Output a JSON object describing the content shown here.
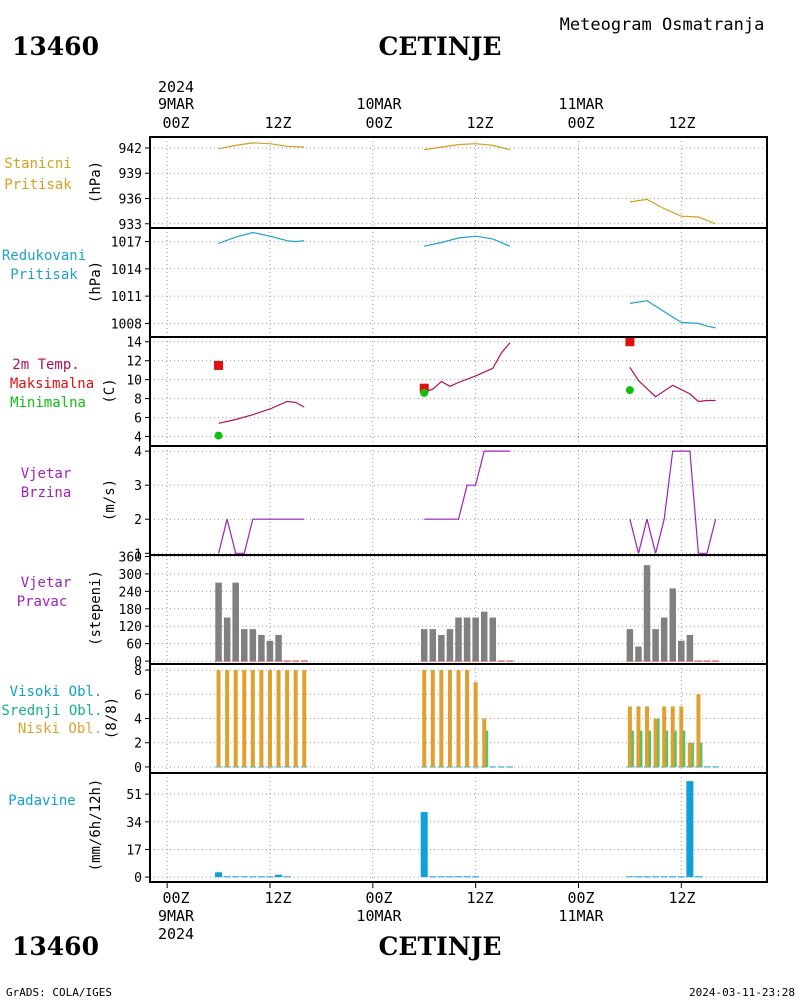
{
  "header": {
    "station_id": "13460",
    "station_name": "CETINJE",
    "product": "Meteogram Osmatranja"
  },
  "footer": {
    "credit": "GrADS: COLA/IGES",
    "timestamp": "2024-03-11-23:28"
  },
  "time_axis": {
    "year": "2024",
    "major_labels": [
      {
        "hour": "00Z",
        "date": "9MAR",
        "year": "2024"
      },
      {
        "hour": "00Z",
        "date": "10MAR"
      },
      {
        "hour": "00Z",
        "date": "11MAR"
      }
    ],
    "minor_label": "12Z",
    "x_hours_range": [
      -2,
      70
    ]
  },
  "colors": {
    "pressure_station": "#d4a020",
    "pressure_reduced": "#1ea0d0",
    "temp_line": "#b0105a",
    "temp_max": "#e01010",
    "temp_min": "#10c010",
    "wind": "#a020c0",
    "wind_dir_bar": "#808080",
    "cloud_high": "#10a0c0",
    "cloud_mid": "#10b090",
    "cloud_low": "#e0a030",
    "cloud_low_line": "#60c060",
    "precip": "#10a0d8"
  },
  "chart_data": [
    {
      "type": "line",
      "panel": "station_pressure",
      "labels": [
        "Stanicni",
        "Pritisak"
      ],
      "ylabel": "(hPa)",
      "ylim": [
        932.5,
        943.3
      ],
      "yticks": [
        933,
        936,
        939,
        942
      ],
      "series": [
        {
          "x": [
            6,
            8,
            10,
            12,
            14,
            16
          ],
          "y": [
            941.9,
            942.3,
            942.6,
            942.5,
            942.2,
            942.1
          ]
        },
        {
          "x": [
            30,
            32,
            34,
            36,
            38,
            40
          ],
          "y": [
            941.8,
            942.1,
            942.4,
            942.5,
            942.3,
            941.8
          ]
        },
        {
          "x": [
            54,
            56,
            58,
            60,
            62,
            64
          ],
          "y": [
            935.6,
            935.9,
            934.8,
            933.9,
            933.8,
            933.0
          ]
        }
      ]
    },
    {
      "type": "line",
      "panel": "reduced_pressure",
      "labels": [
        "Redukovani",
        "Pritisak"
      ],
      "ylabel": "(hPa)",
      "ylim": [
        1006.5,
        1018.5
      ],
      "yticks": [
        1008,
        1011,
        1014,
        1017
      ],
      "series": [
        {
          "x": [
            6,
            8,
            10,
            12,
            14,
            15,
            16
          ],
          "y": [
            1016.8,
            1017.5,
            1018.0,
            1017.6,
            1017.1,
            1017.0,
            1017.1
          ]
        },
        {
          "x": [
            30,
            32,
            34,
            36,
            38,
            40
          ],
          "y": [
            1016.5,
            1016.9,
            1017.4,
            1017.6,
            1017.3,
            1016.5
          ]
        },
        {
          "x": [
            54,
            56,
            58,
            60,
            62,
            63,
            64
          ],
          "y": [
            1010.2,
            1010.5,
            1009.3,
            1008.1,
            1008.0,
            1007.7,
            1007.5
          ]
        }
      ]
    },
    {
      "type": "line",
      "panel": "temperature",
      "labels": [
        "2m Temp.",
        "Maksimalna",
        "Minimalna"
      ],
      "ylabel": "(C)",
      "ylim": [
        3,
        14.5
      ],
      "yticks": [
        4,
        6,
        8,
        10,
        12,
        14
      ],
      "series": [
        {
          "x": [
            6,
            8,
            10,
            12,
            14,
            15,
            16
          ],
          "y": [
            5.4,
            5.8,
            6.3,
            6.9,
            7.7,
            7.6,
            7.1
          ]
        },
        {
          "x": [
            30,
            31,
            32,
            33,
            34,
            36,
            38,
            39,
            40
          ],
          "y": [
            8.7,
            9.0,
            9.8,
            9.3,
            9.7,
            10.4,
            11.2,
            12.8,
            13.9
          ]
        },
        {
          "x": [
            54,
            55,
            57,
            59,
            61,
            62,
            63,
            64
          ],
          "y": [
            11.3,
            9.9,
            8.2,
            9.4,
            8.5,
            7.7,
            7.8,
            7.8
          ]
        }
      ],
      "maxima": {
        "x": [
          6,
          30,
          54
        ],
        "y": [
          11.5,
          9.1,
          14.0
        ]
      },
      "minima": {
        "x": [
          6,
          30,
          54
        ],
        "y": [
          4.1,
          8.6,
          8.9
        ]
      }
    },
    {
      "type": "line",
      "panel": "wind_speed",
      "labels": [
        "Vjetar",
        "Brzina"
      ],
      "ylabel": "(m/s)",
      "ylim": [
        0.95,
        4.15
      ],
      "yticks": [
        1,
        2,
        3,
        4
      ],
      "series": [
        {
          "x": [
            6,
            7,
            8,
            9,
            10,
            11,
            12,
            13,
            14,
            15,
            16
          ],
          "y": [
            1,
            2,
            1,
            1,
            2,
            2,
            2,
            2,
            2,
            2,
            2
          ]
        },
        {
          "x": [
            30,
            31,
            32,
            33,
            34,
            35,
            36,
            37,
            38,
            39,
            40
          ],
          "y": [
            2,
            2,
            2,
            2,
            2,
            3,
            3,
            4,
            4,
            4,
            4
          ]
        },
        {
          "x": [
            54,
            55,
            56,
            57,
            58,
            59,
            60,
            61,
            62,
            63,
            64
          ],
          "y": [
            2,
            1,
            2,
            1,
            2,
            4,
            4,
            4,
            1,
            1,
            2
          ]
        }
      ]
    },
    {
      "type": "bar",
      "panel": "wind_direction",
      "labels": [
        "Vjetar",
        "Pravac"
      ],
      "ylabel": "(stepeni)",
      "ylim": [
        -10,
        365
      ],
      "yticks": [
        0,
        60,
        120,
        180,
        240,
        300,
        360
      ],
      "x": [
        6,
        7,
        8,
        9,
        10,
        11,
        12,
        13,
        14,
        15,
        16,
        30,
        31,
        32,
        33,
        34,
        35,
        36,
        37,
        38,
        39,
        40,
        54,
        55,
        56,
        57,
        58,
        59,
        60,
        61,
        62,
        63,
        64
      ],
      "values": [
        270,
        150,
        270,
        110,
        110,
        90,
        70,
        90,
        0,
        0,
        0,
        110,
        110,
        90,
        110,
        150,
        150,
        150,
        170,
        150,
        0,
        0,
        110,
        50,
        330,
        110,
        150,
        250,
        70,
        90,
        0,
        0,
        0
      ]
    },
    {
      "type": "bar",
      "panel": "clouds",
      "labels": [
        "Visoki Obl.",
        "Srednji Obl.",
        "Niski Obl."
      ],
      "ylabel": "(8/8)",
      "ylim": [
        -0.5,
        8.5
      ],
      "yticks": [
        0,
        2,
        4,
        6,
        8
      ],
      "x": [
        6,
        7,
        8,
        9,
        10,
        11,
        12,
        13,
        14,
        15,
        16,
        30,
        31,
        32,
        33,
        34,
        35,
        36,
        37,
        38,
        39,
        40,
        54,
        55,
        56,
        57,
        58,
        59,
        60,
        61,
        62,
        63,
        64
      ],
      "series": [
        {
          "name": "Niski Obl.",
          "values": [
            8,
            8,
            8,
            8,
            8,
            8,
            8,
            8,
            8,
            8,
            8,
            8,
            8,
            8,
            8,
            8,
            8,
            7,
            4,
            0,
            0,
            0,
            5,
            5,
            5,
            4,
            5,
            5,
            5,
            2,
            6,
            0,
            0
          ]
        },
        {
          "name": "Srednji Obl.",
          "values": [
            0,
            0,
            0,
            0,
            0,
            0,
            0,
            0,
            0,
            0,
            0,
            0,
            0,
            0,
            0,
            0,
            0,
            0,
            3,
            0,
            0,
            0,
            3,
            3,
            3,
            4,
            3,
            3,
            3,
            2,
            2,
            0,
            0
          ]
        }
      ]
    },
    {
      "type": "bar",
      "panel": "precipitation",
      "labels": [
        "Padavine"
      ],
      "ylabel": "(mm/6h/12h)",
      "ylim": [
        -3,
        64
      ],
      "yticks": [
        0,
        17,
        34,
        51
      ],
      "x": [
        6,
        7,
        8,
        9,
        10,
        11,
        12,
        13,
        14,
        15,
        16,
        30,
        31,
        32,
        33,
        34,
        35,
        36,
        37,
        38,
        39,
        40,
        54,
        55,
        56,
        57,
        58,
        59,
        60,
        61,
        62,
        63,
        64
      ],
      "values": [
        3,
        0.5,
        0.5,
        0.5,
        0.5,
        0.5,
        0.5,
        1.5,
        0.5,
        0,
        0,
        40,
        0.5,
        0.5,
        0.5,
        0.5,
        0.5,
        0.5,
        0,
        0,
        0,
        0,
        0.5,
        0.5,
        0.5,
        0.5,
        0.5,
        0.5,
        0.5,
        59,
        0.5,
        0,
        0
      ]
    }
  ]
}
